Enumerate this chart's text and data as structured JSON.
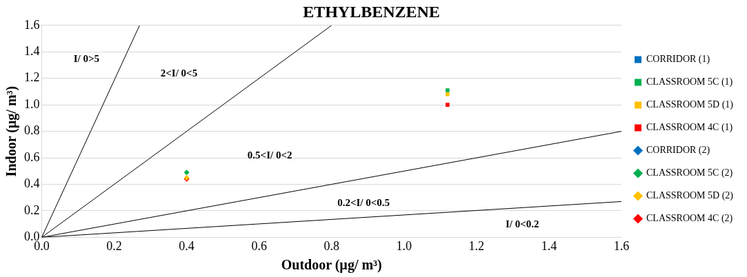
{
  "chart_data": {
    "type": "scatter",
    "title": "ETHYLBENZENE",
    "xlabel": "Outdoor (µg/ m³)",
    "ylabel": "Indoor (µg/ m³)",
    "xlim": [
      0,
      1.6
    ],
    "xticks": [
      {
        "value": 0,
        "label": "0.0"
      },
      {
        "value": 0.2,
        "label": "0.2"
      },
      {
        "value": 0.4,
        "label": "0.4"
      },
      {
        "value": 0.6,
        "label": "0.6"
      },
      {
        "value": 0.8,
        "label": "0.8"
      },
      {
        "value": 1.0,
        "label": "1.0"
      },
      {
        "value": 1.2,
        "label": "1.2"
      },
      {
        "value": 1.4,
        "label": "1.4"
      },
      {
        "value": 1.6,
        "label": "1.6"
      }
    ],
    "ylim": [
      0,
      1.6
    ],
    "yticks": [
      {
        "value": 0,
        "label": "0.0"
      },
      {
        "value": 0.2,
        "label": "0.2"
      },
      {
        "value": 0.4,
        "label": "0.4"
      },
      {
        "value": 0.6,
        "label": "0.6"
      },
      {
        "value": 0.8,
        "label": "0.8"
      },
      {
        "value": 1.0,
        "label": "1.0"
      },
      {
        "value": 1.2,
        "label": "1.2"
      },
      {
        "value": 1.4,
        "label": "1.4"
      },
      {
        "value": 1.6,
        "label": "1.6"
      }
    ],
    "grid": "y",
    "legend": "right",
    "series": [
      {
        "name": "CORRIDOR (1)",
        "color": "#0070c0",
        "marker": "square"
      },
      {
        "name": "CLASSROOM 5C (1)",
        "color": "#00b050",
        "marker": "square",
        "x": [
          1.12
        ],
        "values": [
          1.11
        ]
      },
      {
        "name": "CLASSROOM 5D (1)",
        "color": "#ffc000",
        "marker": "square",
        "x": [
          1.12
        ],
        "values": [
          1.08
        ]
      },
      {
        "name": "CLASSROOM 4C (1)",
        "color": "#ff0000",
        "marker": "square",
        "x": [
          1.12
        ],
        "values": [
          1.0
        ]
      },
      {
        "name": "CORRIDOR (2)",
        "color": "#0070c0",
        "marker": "diamond"
      },
      {
        "name": "CLASSROOM 5C (2)",
        "color": "#00b050",
        "marker": "diamond",
        "x": [
          0.4
        ],
        "values": [
          0.49
        ]
      },
      {
        "name": "CLASSROOM 5D (2)",
        "color": "#ffc000",
        "marker": "diamond",
        "x": [
          0.4
        ],
        "values": [
          0.45
        ]
      },
      {
        "name": "CLASSROOM 4C (2)",
        "color": "#ff0000",
        "marker": "diamond",
        "x": [
          0.4
        ],
        "values": [
          0.44
        ]
      },
      {
        "type": "line",
        "color": "#000000",
        "marker": "none",
        "x": [
          0,
          0.27
        ],
        "values": [
          0,
          1.6
        ]
      },
      {
        "type": "line",
        "color": "#000000",
        "marker": "none",
        "x": [
          0,
          0.8
        ],
        "values": [
          0,
          1.6
        ]
      },
      {
        "type": "line",
        "color": "#000000",
        "marker": "none",
        "x": [
          0,
          1.6
        ],
        "values": [
          0,
          0.8
        ]
      },
      {
        "type": "line",
        "color": "#000000",
        "marker": "none",
        "x": [
          0,
          1.6
        ],
        "values": [
          0,
          0.27
        ]
      }
    ],
    "annotations": [
      "I/ 0>5",
      "2<I/ 0<5",
      "0.5<I/ 0<2",
      "0.2<I/ 0<0.5",
      "I/ 0<0.2"
    ]
  }
}
